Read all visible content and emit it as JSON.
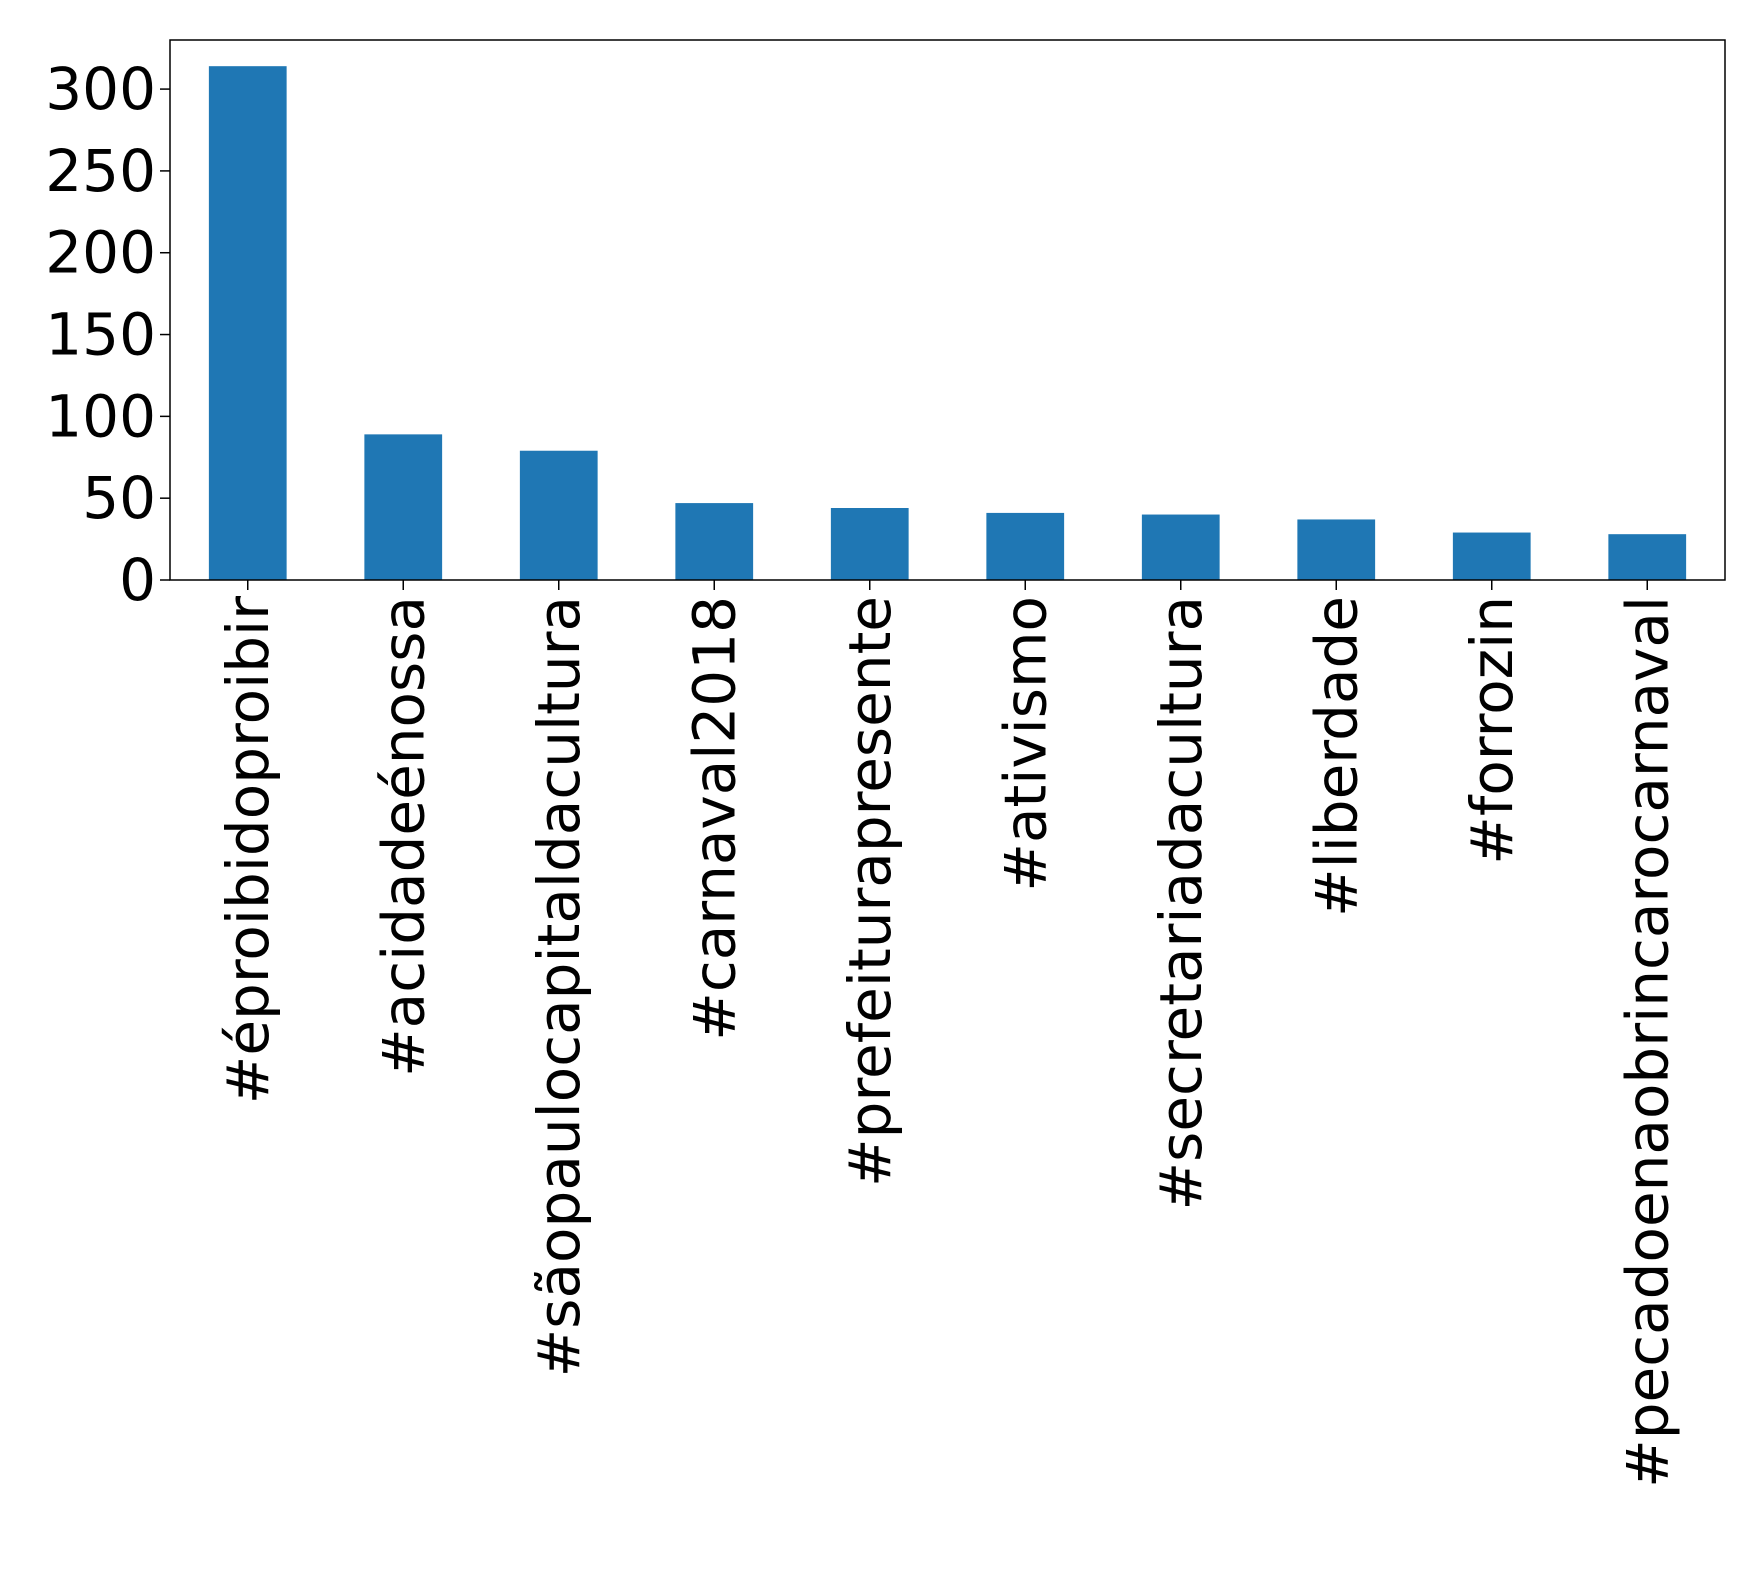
{
  "chart_data": {
    "type": "bar",
    "title": "",
    "xlabel": "",
    "ylabel": "",
    "categories": [
      "#éproibidoproibir",
      "#acidadeénossa",
      "#sãopaulocapitaldacultura",
      "#carnaval2018",
      "#prefeiturapresente",
      "#ativismo",
      "#secretariadacultura",
      "#liberdade",
      "#forrozin",
      "#pecadoenaobrincarocarnaval"
    ],
    "values": [
      314,
      89,
      79,
      47,
      44,
      41,
      40,
      37,
      29,
      28
    ],
    "ylim": [
      0,
      330
    ],
    "yticks": [
      0,
      50,
      100,
      150,
      200,
      250,
      300
    ],
    "ytick_labels": [
      "0",
      "50",
      "100",
      "150",
      "200",
      "250",
      "300"
    ],
    "bar_color": "#1f77b4",
    "grid": false,
    "legend": "none"
  }
}
